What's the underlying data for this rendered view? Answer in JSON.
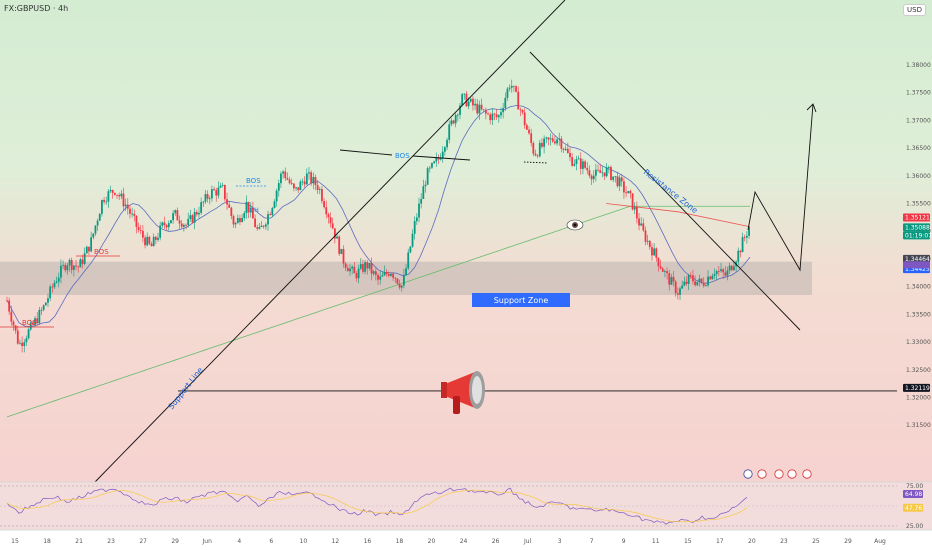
{
  "header": {
    "symbol": "FX:GBPUSD · 4h",
    "currency": "USD"
  },
  "chart_data": {
    "type": "candlestick",
    "symbol": "FX:GBPUSD",
    "interval": "4h",
    "ylim": [
      1.308,
      1.3845
    ],
    "y_ticks": [
      "1.38000",
      "1.37500",
      "1.37000",
      "1.36500",
      "1.36000",
      "1.35500",
      "1.35000",
      "1.34500",
      "1.34000",
      "1.33500",
      "1.33000",
      "1.32500",
      "1.32000",
      "1.31500"
    ],
    "x_ticks": [
      "15",
      "18",
      "21",
      "23",
      "27",
      "29",
      "Jun",
      "4",
      "6",
      "10",
      "12",
      "16",
      "18",
      "20",
      "24",
      "26",
      "Jul",
      "3",
      "7",
      "9",
      "11",
      "15",
      "17",
      "20",
      "23",
      "25",
      "29",
      "Aug"
    ],
    "price_path": [
      {
        "d": 0.0,
        "p": 1.3375
      },
      {
        "d": 1.0,
        "p": 1.3295
      },
      {
        "d": 2.0,
        "p": 1.3325
      },
      {
        "d": 3.0,
        "p": 1.336
      },
      {
        "d": 4.0,
        "p": 1.341
      },
      {
        "d": 5.0,
        "p": 1.3445
      },
      {
        "d": 6.0,
        "p": 1.3435
      },
      {
        "d": 7.0,
        "p": 1.348
      },
      {
        "d": 8.0,
        "p": 1.356
      },
      {
        "d": 9.0,
        "p": 1.3575
      },
      {
        "d": 10.0,
        "p": 1.3545
      },
      {
        "d": 11.0,
        "p": 1.35
      },
      {
        "d": 12.0,
        "p": 1.347
      },
      {
        "d": 13.0,
        "p": 1.351
      },
      {
        "d": 14.0,
        "p": 1.353
      },
      {
        "d": 15.0,
        "p": 1.351
      },
      {
        "d": 16.0,
        "p": 1.354
      },
      {
        "d": 17.0,
        "p": 1.357
      },
      {
        "d": 18.0,
        "p": 1.3575
      },
      {
        "d": 19.0,
        "p": 1.351
      },
      {
        "d": 20.0,
        "p": 1.355
      },
      {
        "d": 21.0,
        "p": 1.3495
      },
      {
        "d": 22.0,
        "p": 1.354
      },
      {
        "d": 23.0,
        "p": 1.361
      },
      {
        "d": 24.0,
        "p": 1.357
      },
      {
        "d": 25.0,
        "p": 1.36
      },
      {
        "d": 26.0,
        "p": 1.358
      },
      {
        "d": 27.0,
        "p": 1.352
      },
      {
        "d": 28.0,
        "p": 1.345
      },
      {
        "d": 29.0,
        "p": 1.342
      },
      {
        "d": 30.0,
        "p": 1.344
      },
      {
        "d": 31.0,
        "p": 1.341
      },
      {
        "d": 32.0,
        "p": 1.343
      },
      {
        "d": 33.0,
        "p": 1.34
      },
      {
        "d": 34.0,
        "p": 1.351
      },
      {
        "d": 35.0,
        "p": 1.36
      },
      {
        "d": 36.0,
        "p": 1.363
      },
      {
        "d": 37.0,
        "p": 1.369
      },
      {
        "d": 38.0,
        "p": 1.374
      },
      {
        "d": 39.0,
        "p": 1.3725
      },
      {
        "d": 40.0,
        "p": 1.371
      },
      {
        "d": 41.0,
        "p": 1.3705
      },
      {
        "d": 42.0,
        "p": 1.377
      },
      {
        "d": 43.0,
        "p": 1.371
      },
      {
        "d": 44.0,
        "p": 1.364
      },
      {
        "d": 45.0,
        "p": 1.366
      },
      {
        "d": 46.0,
        "p": 1.367
      },
      {
        "d": 47.0,
        "p": 1.363
      },
      {
        "d": 48.0,
        "p": 1.362
      },
      {
        "d": 49.0,
        "p": 1.36
      },
      {
        "d": 50.0,
        "p": 1.361
      },
      {
        "d": 51.0,
        "p": 1.359
      },
      {
        "d": 52.0,
        "p": 1.356
      },
      {
        "d": 53.0,
        "p": 1.35
      },
      {
        "d": 54.0,
        "p": 1.346
      },
      {
        "d": 55.0,
        "p": 1.342
      },
      {
        "d": 56.0,
        "p": 1.339
      },
      {
        "d": 57.0,
        "p": 1.3415
      },
      {
        "d": 58.0,
        "p": 1.3405
      },
      {
        "d": 59.0,
        "p": 1.343
      },
      {
        "d": 60.0,
        "p": 1.342
      },
      {
        "d": 61.0,
        "p": 1.346
      },
      {
        "d": 62.0,
        "p": 1.3512
      }
    ],
    "annotations": {
      "bos_labels": [
        "BOS",
        "BOS",
        "BOS",
        "BOS"
      ],
      "ch_label": "CH",
      "support_zone": {
        "label": "Support Zone",
        "from": 1.3385,
        "to": 1.3445
      },
      "support_line_label": "Support Line",
      "resistance_label": "Resistance Zone",
      "horizontal_level": 1.32119
    },
    "price_tags": [
      {
        "value": "1.35121",
        "color": "#f23645"
      },
      {
        "value": "1.35088",
        "color": "#089981"
      },
      {
        "value": "01:19:07",
        "color": "#089981"
      },
      {
        "value": "1.34464",
        "color": "#434651"
      },
      {
        "value": "1.34425",
        "color": "#2962ff"
      },
      {
        "value": "1.32119",
        "color": "#131722"
      }
    ],
    "rsi": {
      "ylim": [
        25,
        75
      ],
      "ticks": [
        "75.00",
        "25.00"
      ],
      "value_tags": [
        {
          "value": "64.98",
          "color": "#7e57c2"
        },
        {
          "value": "47.76",
          "color": "#f7c948"
        }
      ],
      "values": [
        55,
        42,
        50,
        58,
        62,
        55,
        60,
        66,
        70,
        72,
        64,
        56,
        50,
        58,
        60,
        55,
        62,
        66,
        68,
        56,
        62,
        50,
        60,
        68,
        63,
        66,
        62,
        52,
        44,
        40,
        44,
        38,
        42,
        38,
        55,
        64,
        66,
        70,
        72,
        68,
        66,
        65,
        70,
        58,
        48,
        52,
        54,
        48,
        46,
        44,
        46,
        42,
        40,
        34,
        30,
        28,
        32,
        30,
        36,
        34,
        42,
        50,
        65
      ]
    }
  }
}
